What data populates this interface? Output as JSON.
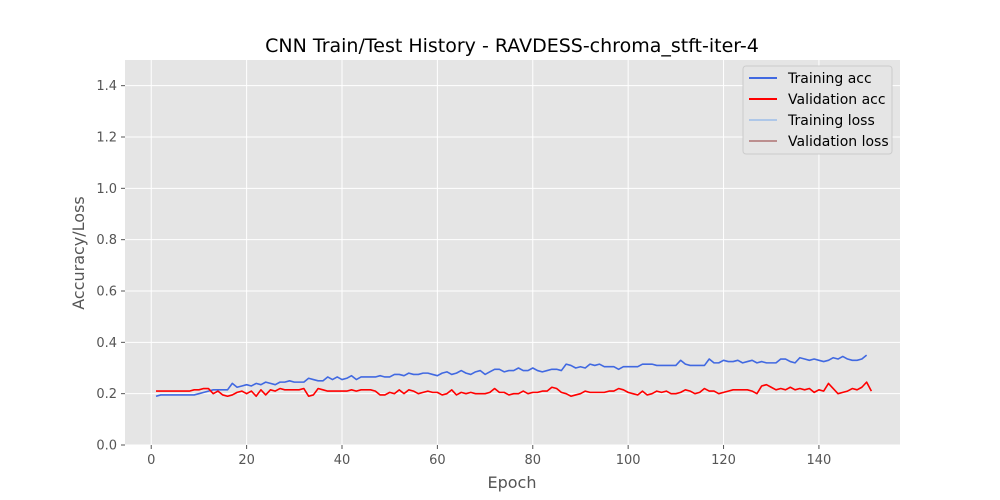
{
  "chart_data": {
    "type": "line",
    "title": "CNN Train/Test History -  RAVDESS-chroma_stft-iter-4",
    "xlabel": "Epoch",
    "ylabel": "Accuracy/Loss",
    "xlim": [
      -5.5,
      157
    ],
    "ylim": [
      0,
      1.5
    ],
    "xticks": [
      0,
      20,
      40,
      60,
      80,
      100,
      120,
      140
    ],
    "yticks": [
      0.0,
      0.2,
      0.4,
      0.6,
      0.8,
      1.0,
      1.2,
      1.4
    ],
    "xtick_labels": [
      "0",
      "20",
      "40",
      "60",
      "80",
      "100",
      "120",
      "140"
    ],
    "ytick_labels": [
      "0.0",
      "0.2",
      "0.4",
      "0.6",
      "0.8",
      "1.0",
      "1.2",
      "1.4"
    ],
    "grid": true,
    "legend_position": "top-right",
    "series": [
      {
        "name": "Training acc",
        "color": "#4169e1",
        "x_start": 1,
        "values": [
          0.19,
          0.195,
          0.195,
          0.195,
          0.195,
          0.195,
          0.195,
          0.195,
          0.195,
          0.2,
          0.205,
          0.21,
          0.215,
          0.215,
          0.215,
          0.215,
          0.24,
          0.225,
          0.23,
          0.235,
          0.23,
          0.24,
          0.235,
          0.245,
          0.24,
          0.235,
          0.245,
          0.245,
          0.25,
          0.245,
          0.245,
          0.245,
          0.26,
          0.255,
          0.25,
          0.25,
          0.265,
          0.255,
          0.265,
          0.255,
          0.26,
          0.27,
          0.255,
          0.265,
          0.265,
          0.265,
          0.265,
          0.27,
          0.265,
          0.265,
          0.275,
          0.275,
          0.27,
          0.28,
          0.275,
          0.275,
          0.28,
          0.28,
          0.275,
          0.27,
          0.28,
          0.285,
          0.275,
          0.28,
          0.29,
          0.28,
          0.275,
          0.285,
          0.29,
          0.275,
          0.285,
          0.295,
          0.295,
          0.285,
          0.29,
          0.29,
          0.3,
          0.29,
          0.29,
          0.3,
          0.29,
          0.285,
          0.29,
          0.295,
          0.295,
          0.29,
          0.315,
          0.31,
          0.3,
          0.305,
          0.3,
          0.315,
          0.31,
          0.315,
          0.305,
          0.305,
          0.305,
          0.295,
          0.305,
          0.305,
          0.305,
          0.305,
          0.315,
          0.315,
          0.315,
          0.31,
          0.31,
          0.31,
          0.31,
          0.31,
          0.33,
          0.315,
          0.31,
          0.31,
          0.31,
          0.31,
          0.335,
          0.32,
          0.32,
          0.33,
          0.325,
          0.325,
          0.33,
          0.32,
          0.325,
          0.33,
          0.32,
          0.325,
          0.32,
          0.32,
          0.32,
          0.335,
          0.335,
          0.325,
          0.32,
          0.34,
          0.335,
          0.33,
          0.335,
          0.33,
          0.325,
          0.33,
          0.34,
          0.335,
          0.345,
          0.335,
          0.33,
          0.33,
          0.335,
          0.35
        ]
      },
      {
        "name": "Validation acc",
        "color": "#ff0000",
        "x_start": 1,
        "values": [
          0.21,
          0.21,
          0.21,
          0.21,
          0.21,
          0.21,
          0.21,
          0.21,
          0.215,
          0.215,
          0.22,
          0.22,
          0.2,
          0.21,
          0.195,
          0.19,
          0.195,
          0.205,
          0.21,
          0.2,
          0.21,
          0.19,
          0.215,
          0.195,
          0.215,
          0.21,
          0.22,
          0.215,
          0.215,
          0.215,
          0.215,
          0.22,
          0.19,
          0.195,
          0.22,
          0.215,
          0.21,
          0.21,
          0.21,
          0.21,
          0.21,
          0.215,
          0.21,
          0.215,
          0.215,
          0.215,
          0.21,
          0.195,
          0.195,
          0.205,
          0.2,
          0.215,
          0.2,
          0.215,
          0.21,
          0.2,
          0.205,
          0.21,
          0.205,
          0.205,
          0.195,
          0.2,
          0.215,
          0.195,
          0.205,
          0.2,
          0.205,
          0.2,
          0.2,
          0.2,
          0.205,
          0.22,
          0.205,
          0.205,
          0.195,
          0.2,
          0.2,
          0.21,
          0.2,
          0.205,
          0.205,
          0.21,
          0.21,
          0.225,
          0.22,
          0.205,
          0.2,
          0.19,
          0.195,
          0.2,
          0.21,
          0.205,
          0.205,
          0.205,
          0.205,
          0.21,
          0.21,
          0.22,
          0.215,
          0.205,
          0.2,
          0.195,
          0.21,
          0.195,
          0.2,
          0.21,
          0.205,
          0.21,
          0.2,
          0.2,
          0.205,
          0.215,
          0.21,
          0.2,
          0.205,
          0.22,
          0.21,
          0.21,
          0.2,
          0.205,
          0.21,
          0.215,
          0.215,
          0.215,
          0.215,
          0.21,
          0.2,
          0.23,
          0.235,
          0.225,
          0.215,
          0.22,
          0.215,
          0.225,
          0.215,
          0.22,
          0.215,
          0.22,
          0.205,
          0.215,
          0.21,
          0.24,
          0.22,
          0.2,
          0.205,
          0.21,
          0.22,
          0.215,
          0.225,
          0.245,
          0.21
        ]
      },
      {
        "name": "Training loss",
        "color": "#aec7e8",
        "x_start": 1,
        "values": []
      },
      {
        "name": "Validation loss",
        "color": "#bc8f8f",
        "x_start": 1,
        "values": []
      }
    ]
  }
}
